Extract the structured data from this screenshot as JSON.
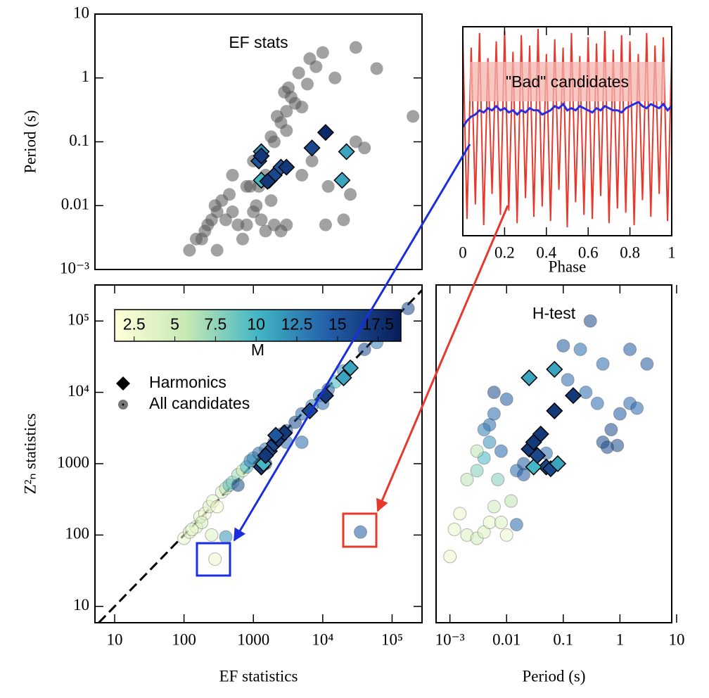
{
  "chart_data": [
    {
      "type": "scatter",
      "title": "EF stats",
      "ylabel": "Period (s)",
      "xlog": true,
      "ylog": true,
      "xlim": [
        5.2,
        270000
      ],
      "ylim": [
        0.001,
        10
      ],
      "yticks": [
        {
          "value": 0.001,
          "label": "10⁻³"
        },
        0.01,
        0.1,
        1,
        10
      ],
      "series": [
        {
          "marker": "circle",
          "color": "#555555",
          "x": [
            180,
            200,
            220,
            150,
            120,
            250,
            300,
            350,
            280,
            400,
            500,
            600,
            800,
            1000,
            700,
            300,
            450,
            900,
            1100,
            1300,
            1500,
            2000,
            2500,
            3000,
            1800,
            1500,
            1200,
            2000,
            2500,
            3000,
            3500,
            4000,
            5000,
            2800,
            3200,
            6000,
            8000,
            10000,
            15000,
            30000,
            60000,
            200000,
            30000,
            12000,
            25000,
            20000,
            11000,
            3000,
            1800,
            2200,
            4500,
            6500,
            800,
            500,
            1000,
            40000,
            7000,
            5000
          ],
          "values": [
            0.003,
            0.004,
            0.005,
            0.003,
            0.002,
            0.006,
            0.008,
            0.012,
            0.01,
            0.006,
            0.008,
            0.005,
            0.005,
            0.008,
            0.003,
            0.002,
            0.015,
            0.02,
            0.01,
            0.006,
            0.004,
            0.005,
            0.004,
            0.005,
            0.012,
            0.03,
            0.02,
            0.1,
            0.2,
            0.3,
            0.5,
            0.4,
            0.35,
            0.6,
            0.7,
            0.8,
            1.5,
            2.5,
            1,
            3,
            1.4,
            0.25,
            0.1,
            0.02,
            0.015,
            0.006,
            0.005,
            0.15,
            0.12,
            0.25,
            1.2,
            2,
            0.02,
            0.03,
            0.05,
            0.08,
            0.05,
            0.03
          ]
        },
        {
          "marker": "diamond",
          "color": "#000000",
          "x": [
            1200,
            1300,
            1300,
            1700,
            2000,
            2500,
            3000,
            7000,
            11000,
            22000,
            19000,
            1300,
            1600
          ],
          "values": [
            0.05,
            0.07,
            0.025,
            0.025,
            0.03,
            0.04,
            0.04,
            0.08,
            0.14,
            0.07,
            0.025,
            0.06,
            0.024
          ],
          "m": [
            15,
            12,
            10,
            15,
            16,
            15,
            17,
            16,
            18,
            11,
            11,
            17,
            17
          ]
        }
      ]
    },
    {
      "type": "line",
      "xlabel": "Phase",
      "annotation": "\"Bad\" candidates",
      "xlim": [
        0,
        1
      ],
      "ylim": [
        0,
        1
      ],
      "xticks": [
        0,
        0.2,
        0.4,
        0.6,
        0.8,
        1
      ],
      "x": [
        0,
        0.02,
        0.04,
        0.06,
        0.08,
        0.1,
        0.12,
        0.14,
        0.16,
        0.18,
        0.2,
        0.22,
        0.24,
        0.26,
        0.28,
        0.3,
        0.32,
        0.34,
        0.36,
        0.38,
        0.4,
        0.42,
        0.44,
        0.46,
        0.48,
        0.5,
        0.52,
        0.54,
        0.56,
        0.58,
        0.6,
        0.62,
        0.64,
        0.66,
        0.68,
        0.7,
        0.72,
        0.74,
        0.76,
        0.78,
        0.8,
        0.82,
        0.84,
        0.86,
        0.88,
        0.9,
        0.92,
        0.94,
        0.96,
        0.98,
        1
      ],
      "series": [
        {
          "color": "#e8382c",
          "values": [
            0.95,
            0.08,
            0.9,
            0.15,
            0.97,
            0.05,
            0.85,
            0.2,
            0.93,
            0.1,
            0.98,
            0.12,
            0.88,
            0.06,
            0.96,
            0.18,
            0.91,
            0.09,
            0.99,
            0.14,
            0.87,
            0.07,
            0.94,
            0.22,
            0.9,
            0.04,
            0.97,
            0.16,
            0.86,
            0.1,
            0.95,
            0.08,
            0.92,
            0.19,
            0.98,
            0.06,
            0.89,
            0.13,
            0.96,
            0.11,
            0.93,
            0.05,
            0.87,
            0.17,
            0.97,
            0.09,
            0.91,
            0.2,
            0.95,
            0.07,
            0.88
          ]
        },
        {
          "color": "#2a2ee0",
          "values": [
            0.52,
            0.55,
            0.57,
            0.58,
            0.6,
            0.59,
            0.61,
            0.6,
            0.62,
            0.6,
            0.61,
            0.59,
            0.6,
            0.58,
            0.6,
            0.59,
            0.61,
            0.6,
            0.6,
            0.58,
            0.59,
            0.6,
            0.62,
            0.61,
            0.63,
            0.6,
            0.61,
            0.6,
            0.62,
            0.61,
            0.6,
            0.59,
            0.61,
            0.6,
            0.62,
            0.61,
            0.6,
            0.6,
            0.59,
            0.61,
            0.62,
            0.63,
            0.64,
            0.62,
            0.61,
            0.63,
            0.62,
            0.61,
            0.63,
            0.6,
            0.62
          ]
        }
      ]
    },
    {
      "type": "scatter",
      "xlabel": "EF statistics",
      "ylabel": "Z²ₙ statistics",
      "xlog": true,
      "ylog": true,
      "xlim": [
        5.2,
        270000
      ],
      "ylim": [
        5.9,
        320000
      ],
      "diagonal": true,
      "xticks": [
        10,
        100,
        1000,
        {
          "value": 10000,
          "label": "10⁴"
        },
        {
          "value": 100000,
          "label": "10⁵"
        }
      ],
      "yticks": [
        10,
        100,
        1000,
        {
          "value": 10000,
          "label": "10⁴"
        },
        {
          "value": 100000,
          "label": "10⁵"
        }
      ],
      "colormap": [
        "#ffffd9",
        "#c7e9b4",
        "#41b6c4",
        "#225ea8",
        "#081d58"
      ],
      "clim": [
        1.3,
        18.9
      ],
      "colorbar_label": "M",
      "colorbar_ticks": [
        2.5,
        5,
        7.5,
        10,
        12.5,
        15,
        17.5
      ],
      "series": [
        {
          "name": "All candidates",
          "marker": "circle",
          "color": "#777777",
          "x": [
            100,
            120,
            150,
            170,
            200,
            230,
            260,
            300,
            350,
            400,
            450,
            500,
            600,
            700,
            800,
            900,
            1000,
            1200,
            1500,
            2000,
            2500,
            3000,
            4000,
            5000,
            7000,
            9000,
            12000,
            15000,
            20000,
            40000,
            60000,
            170000,
            3000,
            1500,
            600,
            400,
            280,
            35000,
            250,
            180,
            130,
            5000,
            10000
          ],
          "values": [
            90,
            110,
            130,
            180,
            200,
            250,
            300,
            250,
            400,
            450,
            500,
            550,
            700,
            800,
            900,
            1100,
            1200,
            1400,
            1600,
            2000,
            2600,
            2900,
            3800,
            5000,
            6500,
            9000,
            11000,
            14000,
            20000,
            40000,
            50000,
            150000,
            2000,
            1000,
            500,
            94,
            46,
            110,
            100,
            150,
            120,
            2000,
            7000
          ],
          "m": [
            3,
            4,
            3,
            3,
            2,
            4,
            3,
            2,
            4,
            6,
            9,
            8,
            7,
            5,
            10,
            13,
            12,
            14,
            13,
            15,
            14,
            15,
            16,
            14,
            13,
            12,
            15,
            10,
            12,
            16,
            13,
            16,
            14,
            16,
            16,
            12,
            3,
            15,
            4,
            5,
            3,
            14,
            14
          ]
        },
        {
          "name": "Harmonics",
          "marker": "diamond",
          "color": "#000000",
          "x": [
            1300,
            1400,
            1700,
            2000,
            2300,
            2800,
            6500,
            11000,
            20000,
            25000,
            1500,
            2100
          ],
          "values": [
            900,
            1000,
            1500,
            1900,
            2200,
            2700,
            5500,
            9000,
            16000,
            22000,
            1300,
            2500
          ],
          "m": [
            17,
            10,
            16,
            16,
            17,
            17,
            16,
            17,
            11,
            11,
            17,
            15
          ]
        }
      ]
    },
    {
      "type": "scatter",
      "title": "H-test",
      "xlabel": "Period (s)",
      "xlog": true,
      "ylog": true,
      "xlim": [
        0.00057,
        8.2
      ],
      "ylim": [
        5.9,
        320000
      ],
      "xticks": [
        {
          "value": 0.001,
          "label": "10⁻³"
        },
        0.01,
        0.1,
        1,
        10
      ],
      "series": [
        {
          "marker": "circle",
          "x": [
            0.001,
            0.0012,
            0.0015,
            0.002,
            0.003,
            0.004,
            0.005,
            0.006,
            0.007,
            0.008,
            0.01,
            0.012,
            0.015,
            0.002,
            0.003,
            0.004,
            0.005,
            0.005,
            0.006,
            0.01,
            0.008,
            0.006,
            0.015,
            0.02,
            0.05,
            0.1,
            0.2,
            0.3,
            0.12,
            0.25,
            0.4,
            0.5,
            0.7,
            1,
            1.5,
            2,
            3,
            1.5,
            0.5,
            0.9,
            0.6,
            0.004,
            0.003,
            0.02
          ],
          "values": [
            50,
            120,
            200,
            100,
            90,
            110,
            150,
            250,
            600,
            150,
            100,
            300,
            140,
            600,
            800,
            1200,
            2000,
            3500,
            10000,
            8000,
            1500,
            5000,
            800,
            1000,
            1400,
            45000,
            40000,
            100000,
            15000,
            10000,
            7000,
            2000,
            3000,
            5000,
            7000,
            6000,
            25000,
            40000,
            25000,
            1800,
            1700,
            3000,
            1500,
            700
          ],
          "m": [
            3,
            3,
            3,
            4,
            5,
            4,
            3,
            5,
            8,
            4,
            3,
            6,
            14,
            6,
            8,
            10,
            12,
            14,
            16,
            15,
            14,
            14,
            14,
            15,
            14,
            15,
            14,
            16,
            14,
            14,
            14,
            16,
            16,
            15,
            14,
            14,
            15,
            15,
            14,
            16,
            16,
            13,
            6,
            15
          ]
        },
        {
          "marker": "diamond",
          "x": [
            0.025,
            0.03,
            0.04,
            0.025,
            0.07,
            0.07,
            0.15,
            0.05,
            0.06,
            0.08,
            0.03,
            0.035
          ],
          "values": [
            1600,
            2000,
            2600,
            16000,
            21000,
            5500,
            9000,
            900,
            850,
            1000,
            900,
            1300
          ],
          "m": [
            17,
            17,
            17,
            11,
            11,
            17,
            17,
            16,
            16,
            11,
            10,
            16
          ]
        }
      ]
    }
  ]
}
